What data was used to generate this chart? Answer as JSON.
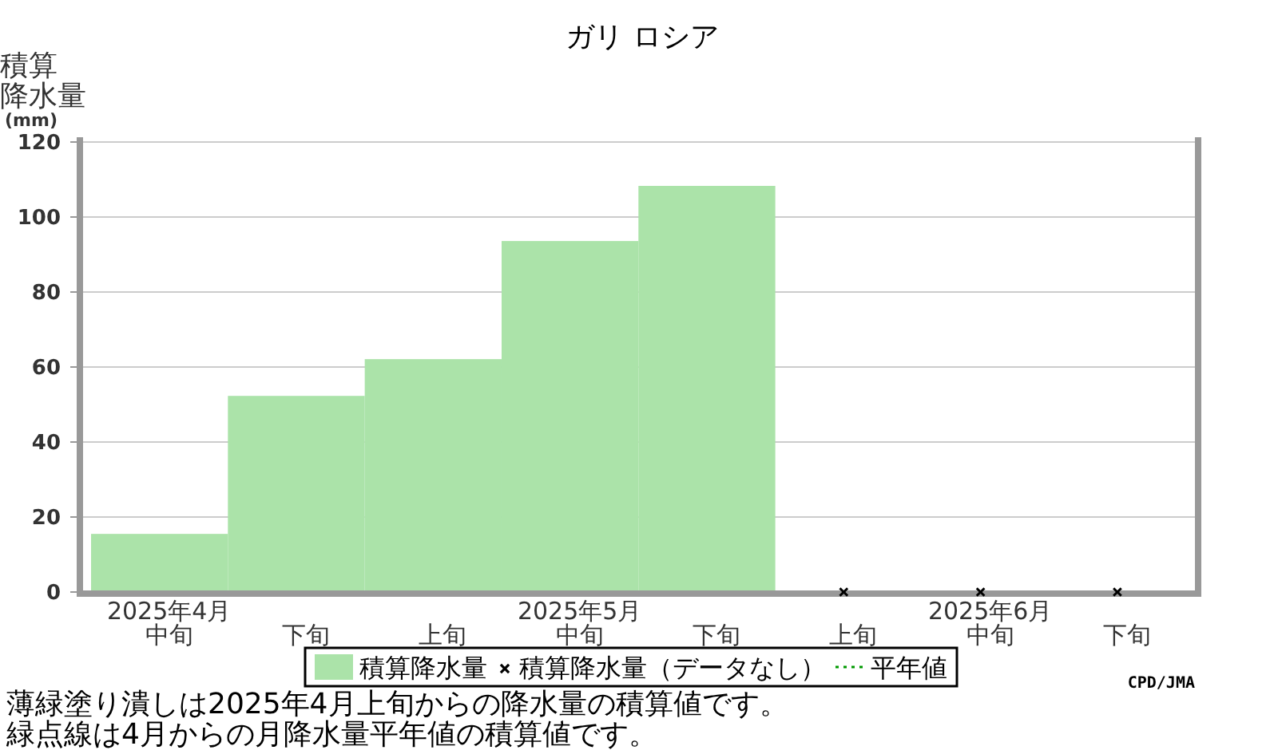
{
  "chart_data": {
    "type": "bar",
    "title": "ガリ ロシア",
    "ylabel": "積算降水量(mm)",
    "categories": [
      "2025年4月中旬",
      "下旬",
      "上旬",
      "2025年5月中旬",
      "下旬",
      "上旬",
      "2025年6月中旬",
      "下旬"
    ],
    "series": [
      {
        "name": "積算降水量",
        "color": "#abe3a9",
        "values": [
          15.5,
          52.3,
          62.1,
          93.6,
          108.3,
          null,
          null,
          null
        ]
      },
      {
        "name": "積算降水量（データなし）",
        "type": "scatter",
        "marker": "cross",
        "color": "#000000",
        "values": [
          null,
          null,
          null,
          null,
          null,
          0,
          0,
          0
        ]
      },
      {
        "name": "平年値",
        "type": "line",
        "line_style": "dotted",
        "color": "#009900",
        "values": [
          null,
          null,
          null,
          null,
          null,
          null,
          null,
          null
        ]
      }
    ],
    "ylim": [
      0,
      120
    ],
    "yticks": [
      0,
      20,
      40,
      60,
      80,
      100,
      120
    ],
    "grid": "y",
    "legend": "bottom",
    "annotations": [
      "薄緑塗り潰しは2025年4月上旬からの降水量の積算値です。",
      "緑点線は4月からの月降水量平年値の積算値です。",
      "CPD/JMA"
    ]
  }
}
